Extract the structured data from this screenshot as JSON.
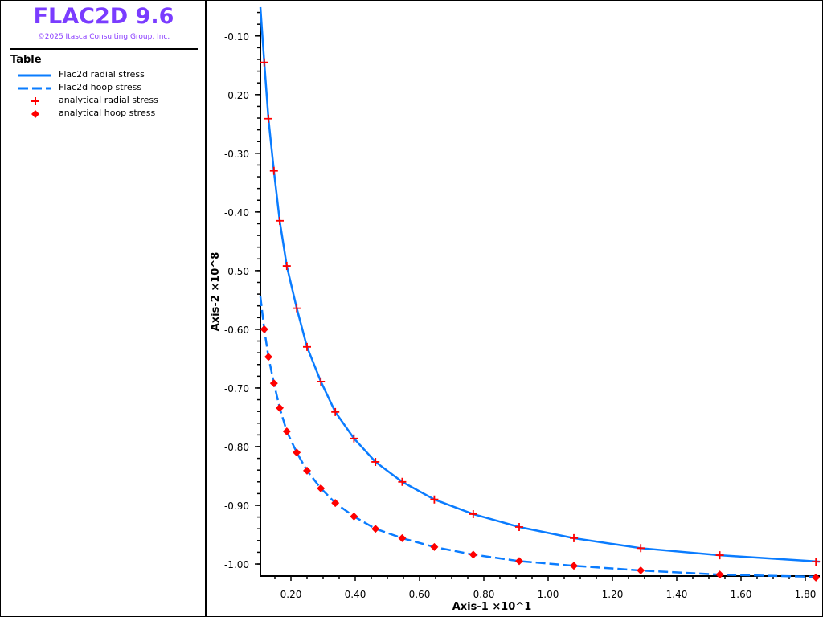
{
  "header": {
    "title": "FLAC2D 9.6",
    "copyright": "©2025 Itasca Consulting Group, Inc."
  },
  "legend": {
    "title": "Table",
    "items": [
      {
        "label": "Flac2d radial stress",
        "symbol": "solid-line",
        "color": "#0a7cff"
      },
      {
        "label": "Flac2d hoop stress",
        "symbol": "dashed-line",
        "color": "#0a7cff"
      },
      {
        "label": "analytical radial stress",
        "symbol": "plus",
        "color": "#ff0000"
      },
      {
        "label": "analytical hoop stress",
        "symbol": "diamond",
        "color": "#ff0000"
      }
    ]
  },
  "chart_data": {
    "type": "line",
    "xlabel": "Axis-1 ×10^1",
    "ylabel": "Axis-2 ×10^8",
    "xlim": [
      0.105,
      1.845
    ],
    "ylim": [
      -1.0205,
      -0.051
    ],
    "xticks": [
      "0.20",
      "0.40",
      "0.60",
      "0.80",
      "1.00",
      "1.20",
      "1.40",
      "1.60",
      "1.80"
    ],
    "yticks": [
      "-0.10",
      "-0.20",
      "-0.30",
      "-0.40",
      "-0.50",
      "-0.60",
      "-0.70",
      "-0.80",
      "-0.90",
      "-1.00"
    ],
    "grid": false,
    "legend_placement": "left-panel",
    "series": [
      {
        "name": "Flac2d radial stress",
        "style": "solid",
        "color": "#0a7cff",
        "x": [
          0.105,
          0.117,
          0.13,
          0.147,
          0.165,
          0.187,
          0.218,
          0.25,
          0.293,
          0.338,
          0.396,
          0.463,
          0.546,
          0.646,
          0.767,
          0.91,
          1.08,
          1.288,
          1.534,
          1.845
        ],
        "y": [
          -0.051,
          -0.145,
          -0.241,
          -0.33,
          -0.415,
          -0.492,
          -0.564,
          -0.63,
          -0.689,
          -0.741,
          -0.786,
          -0.826,
          -0.86,
          -0.89,
          -0.915,
          -0.937,
          -0.956,
          -0.973,
          -0.985,
          -0.996
        ]
      },
      {
        "name": "Flac2d hoop stress",
        "style": "dashed",
        "color": "#0a7cff",
        "x": [
          0.105,
          0.117,
          0.13,
          0.147,
          0.165,
          0.187,
          0.218,
          0.25,
          0.293,
          0.338,
          0.396,
          0.463,
          0.546,
          0.646,
          0.767,
          0.91,
          1.08,
          1.288,
          1.534,
          1.845
        ],
        "y": [
          -0.544,
          -0.6,
          -0.647,
          -0.692,
          -0.734,
          -0.774,
          -0.81,
          -0.841,
          -0.871,
          -0.896,
          -0.919,
          -0.94,
          -0.956,
          -0.971,
          -0.984,
          -0.995,
          -1.003,
          -1.011,
          -1.018,
          -1.022
        ]
      },
      {
        "name": "analytical radial stress",
        "style": "plus",
        "color": "#ff0000",
        "x": [
          0.117,
          0.13,
          0.147,
          0.165,
          0.187,
          0.218,
          0.25,
          0.293,
          0.338,
          0.396,
          0.463,
          0.546,
          0.646,
          0.767,
          0.91,
          1.08,
          1.288,
          1.534,
          1.833
        ],
        "y": [
          -0.145,
          -0.241,
          -0.33,
          -0.415,
          -0.492,
          -0.564,
          -0.63,
          -0.689,
          -0.741,
          -0.786,
          -0.826,
          -0.86,
          -0.89,
          -0.915,
          -0.937,
          -0.956,
          -0.973,
          -0.985,
          -0.996
        ]
      },
      {
        "name": "analytical hoop stress",
        "style": "diamond",
        "color": "#ff0000",
        "x": [
          0.117,
          0.13,
          0.147,
          0.165,
          0.187,
          0.218,
          0.25,
          0.293,
          0.338,
          0.396,
          0.463,
          0.546,
          0.646,
          0.767,
          0.91,
          1.08,
          1.288,
          1.534,
          1.833
        ],
        "y": [
          -0.6,
          -0.647,
          -0.692,
          -0.734,
          -0.774,
          -0.81,
          -0.841,
          -0.871,
          -0.896,
          -0.919,
          -0.94,
          -0.956,
          -0.971,
          -0.984,
          -0.995,
          -1.003,
          -1.011,
          -1.018,
          -1.023
        ]
      }
    ]
  }
}
